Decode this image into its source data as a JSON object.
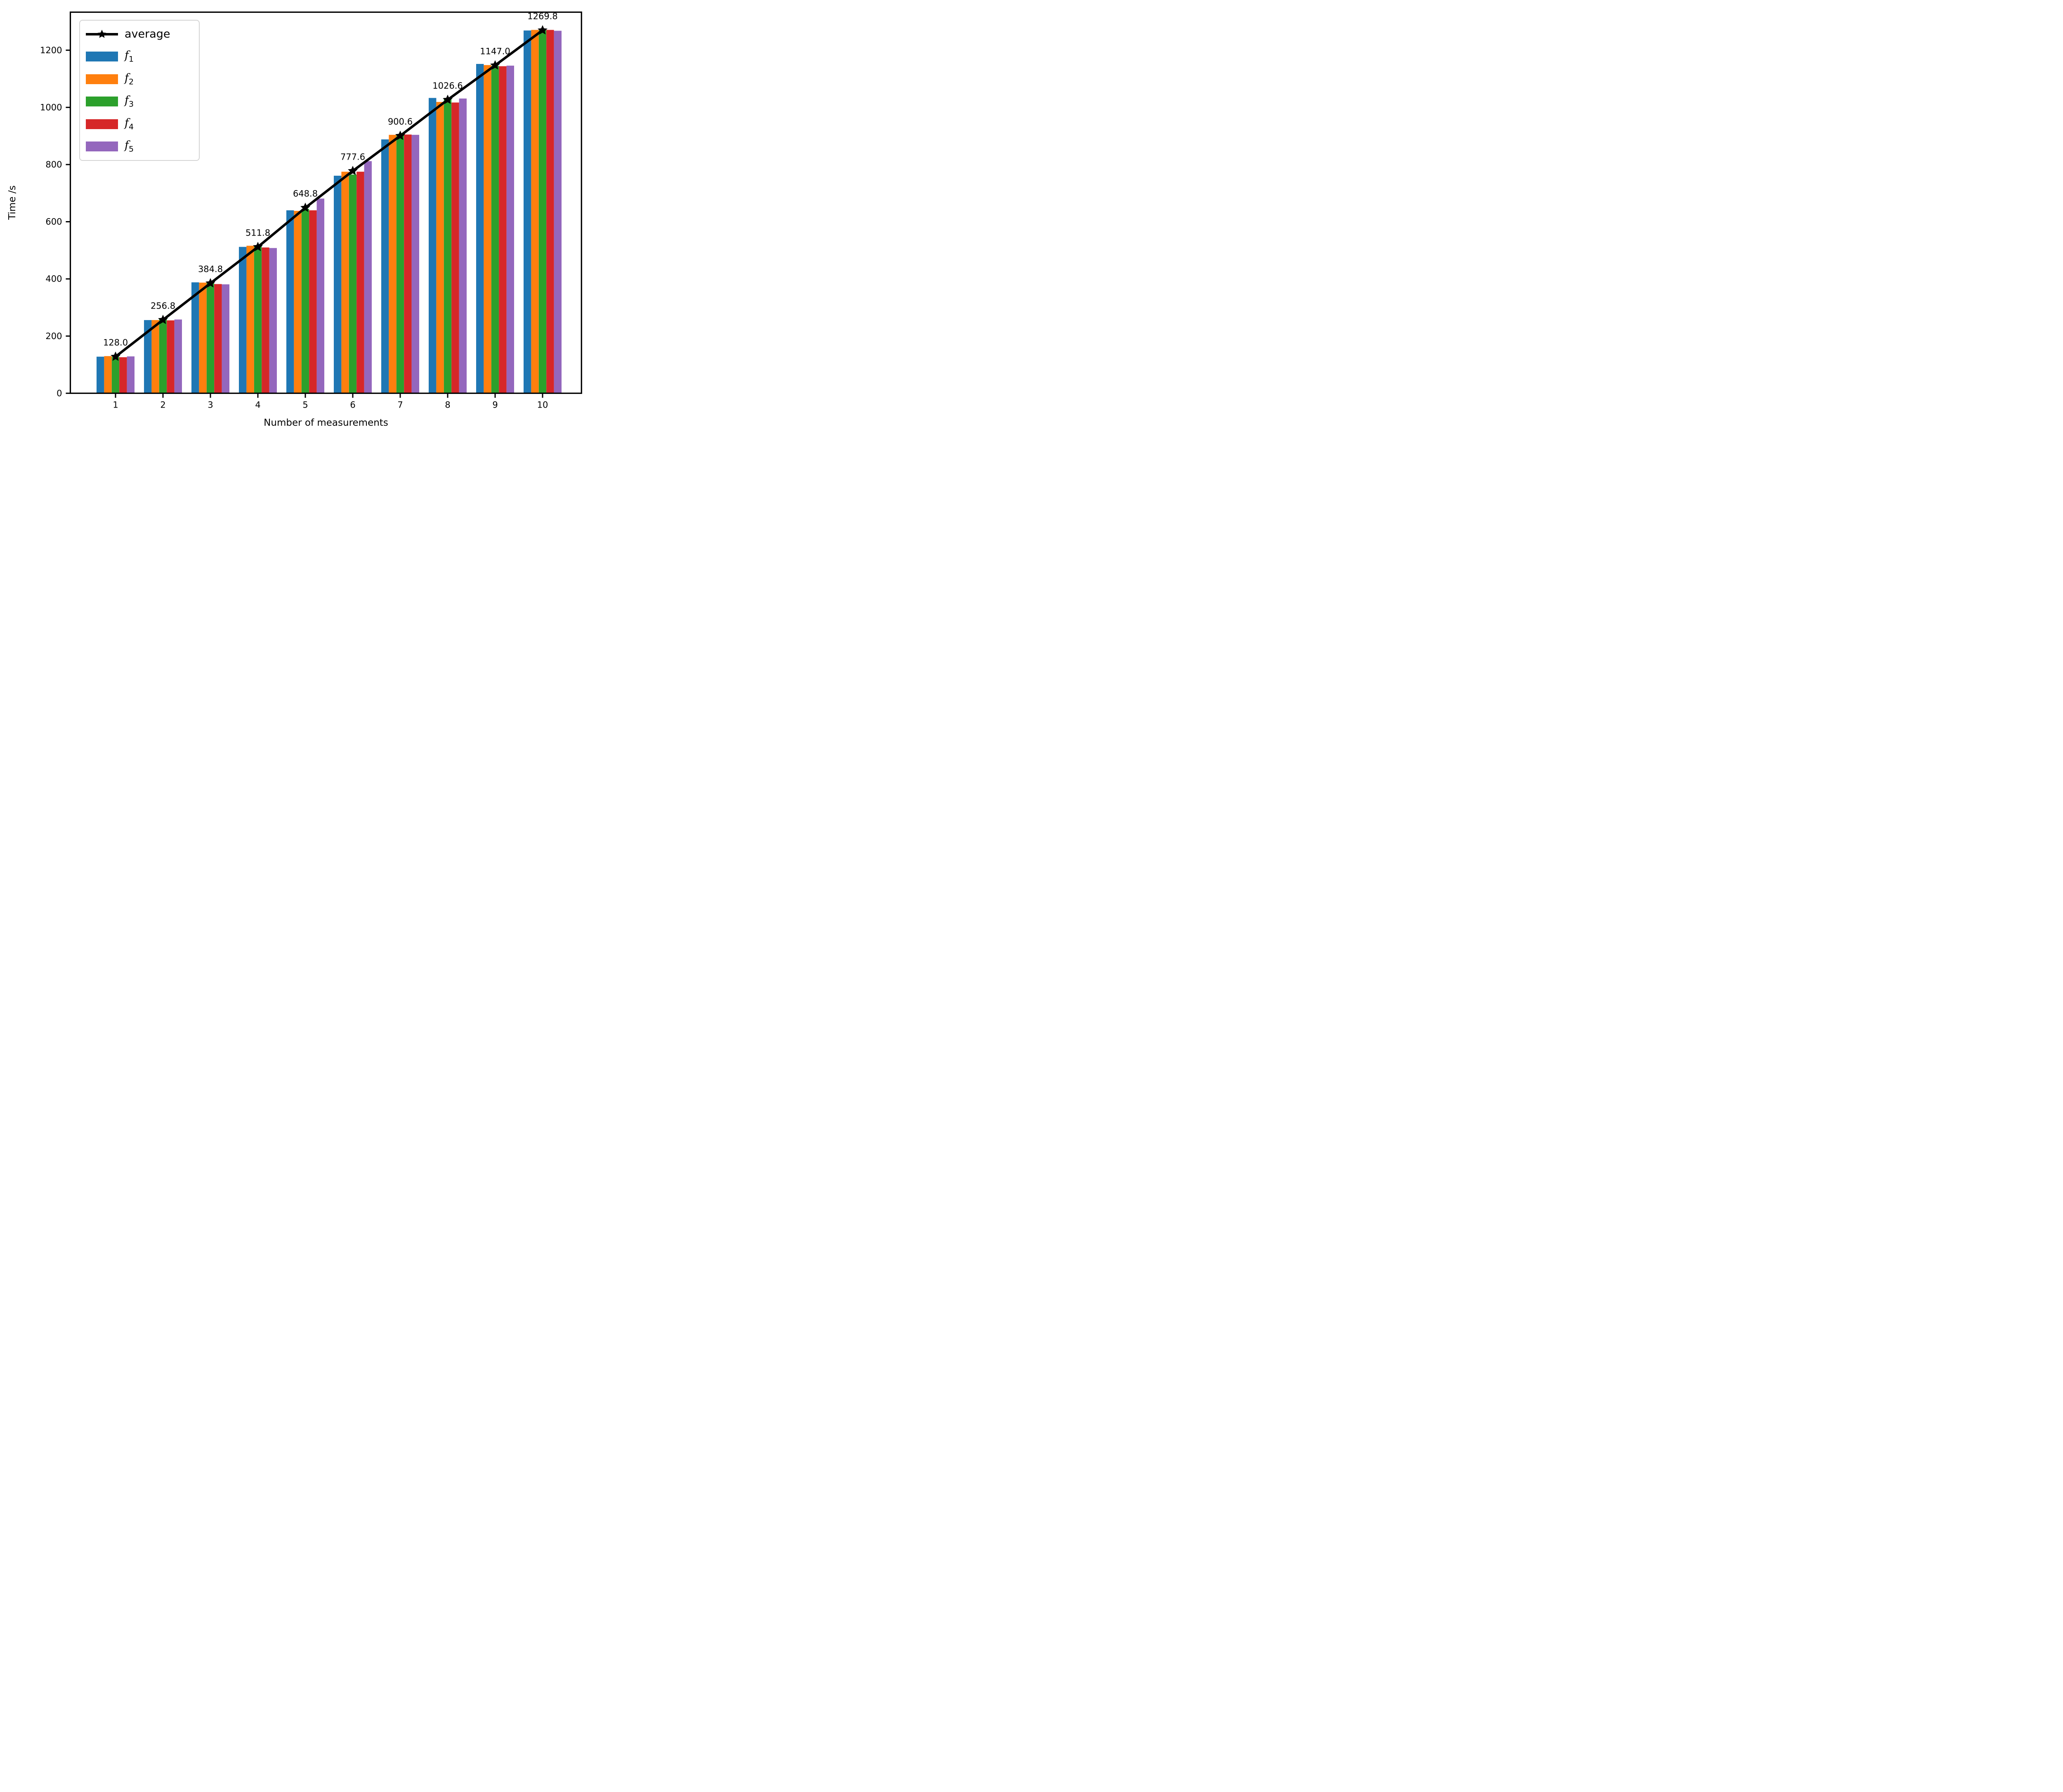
{
  "figure": {
    "background": "#ffffff",
    "spine_color": "#000000"
  },
  "legend": {
    "items": [
      {
        "label": "average",
        "type": "line",
        "color": "#000000"
      },
      {
        "label": "f",
        "sub": "1",
        "type": "patch",
        "color": "#1f77b4"
      },
      {
        "label": "f",
        "sub": "2",
        "type": "patch",
        "color": "#ff7f0e"
      },
      {
        "label": "f",
        "sub": "3",
        "type": "patch",
        "color": "#2ca02c"
      },
      {
        "label": "f",
        "sub": "4",
        "type": "patch",
        "color": "#d62728"
      },
      {
        "label": "f",
        "sub": "5",
        "type": "patch",
        "color": "#9467bd"
      }
    ]
  },
  "chart_data": {
    "type": "bar",
    "title": "",
    "xlabel": "Number of measurements",
    "ylabel": "Time /s",
    "x": [
      1,
      2,
      3,
      4,
      5,
      6,
      7,
      8,
      9,
      10
    ],
    "xticklabels": [
      "1",
      "2",
      "3",
      "4",
      "5",
      "6",
      "7",
      "8",
      "9",
      "10"
    ],
    "yticks": [
      0,
      200,
      400,
      600,
      800,
      1000,
      1200
    ],
    "ylim": [
      0,
      1333
    ],
    "grid": false,
    "legend_position": "upper left",
    "series": [
      {
        "name": "f1",
        "color": "#1f77b4",
        "values": [
          128,
          256,
          388,
          512,
          640,
          761,
          888,
          1033,
          1152,
          1269
        ]
      },
      {
        "name": "f2",
        "color": "#ff7f0e",
        "values": [
          130,
          256,
          387,
          516,
          638,
          775,
          904,
          1019,
          1148,
          1271
        ]
      },
      {
        "name": "f3",
        "color": "#2ca02c",
        "values": [
          127,
          259,
          386,
          513,
          645,
          765,
          902,
          1033,
          1145,
          1270
        ]
      },
      {
        "name": "f4",
        "color": "#d62728",
        "values": [
          126,
          255,
          382,
          510,
          640,
          775,
          905,
          1017,
          1144,
          1271
        ]
      },
      {
        "name": "f5",
        "color": "#9467bd",
        "values": [
          129,
          258,
          381,
          508,
          681,
          812,
          904,
          1031,
          1146,
          1268
        ]
      }
    ],
    "average": {
      "name": "average",
      "color": "#000000",
      "marker": "star",
      "values": [
        128.0,
        256.8,
        384.8,
        511.8,
        648.8,
        777.6,
        900.6,
        1026.6,
        1147.0,
        1269.8
      ],
      "labels": [
        "128.0",
        "256.8",
        "384.8",
        "511.8",
        "648.8",
        "777.6",
        "900.6",
        "1026.6",
        "1147.0",
        "1269.8"
      ]
    }
  }
}
